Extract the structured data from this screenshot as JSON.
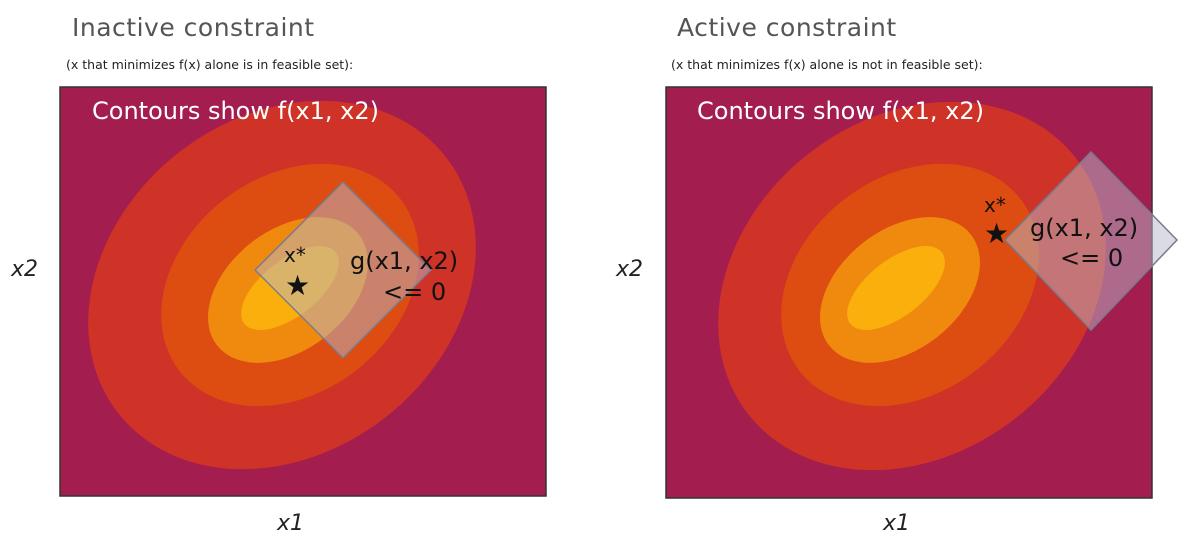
{
  "panels": [
    {
      "title": "Inactive constraint",
      "subtitle": "(x that minimizes f(x) alone is in feasible set):",
      "contour_caption": "Contours show f(x1, x2)",
      "optimum_label": "x*",
      "optimum_marker": "★",
      "constraint_line1": "g(x1, x2)",
      "constraint_line2": "<= 0",
      "xlabel": "x1",
      "ylabel": "x2"
    },
    {
      "title": "Active constraint",
      "subtitle": "(x that minimizes f(x) alone is not in feasible set):",
      "contour_caption": "Contours show f(x1, x2)",
      "optimum_label": "x*",
      "optimum_marker": "★",
      "constraint_line1": "g(x1, x2)",
      "constraint_line2": "<= 0",
      "xlabel": "x1",
      "ylabel": "x2"
    }
  ],
  "colors": {
    "background": "#a31d4f",
    "contour_outer": "#cf3226",
    "contour_mid": "#dd4d11",
    "contour_inner": "#f08a0f",
    "contour_center": "#fbaf0c",
    "constraint_fill": "#b8b8c8",
    "caption": "#ffffff"
  }
}
